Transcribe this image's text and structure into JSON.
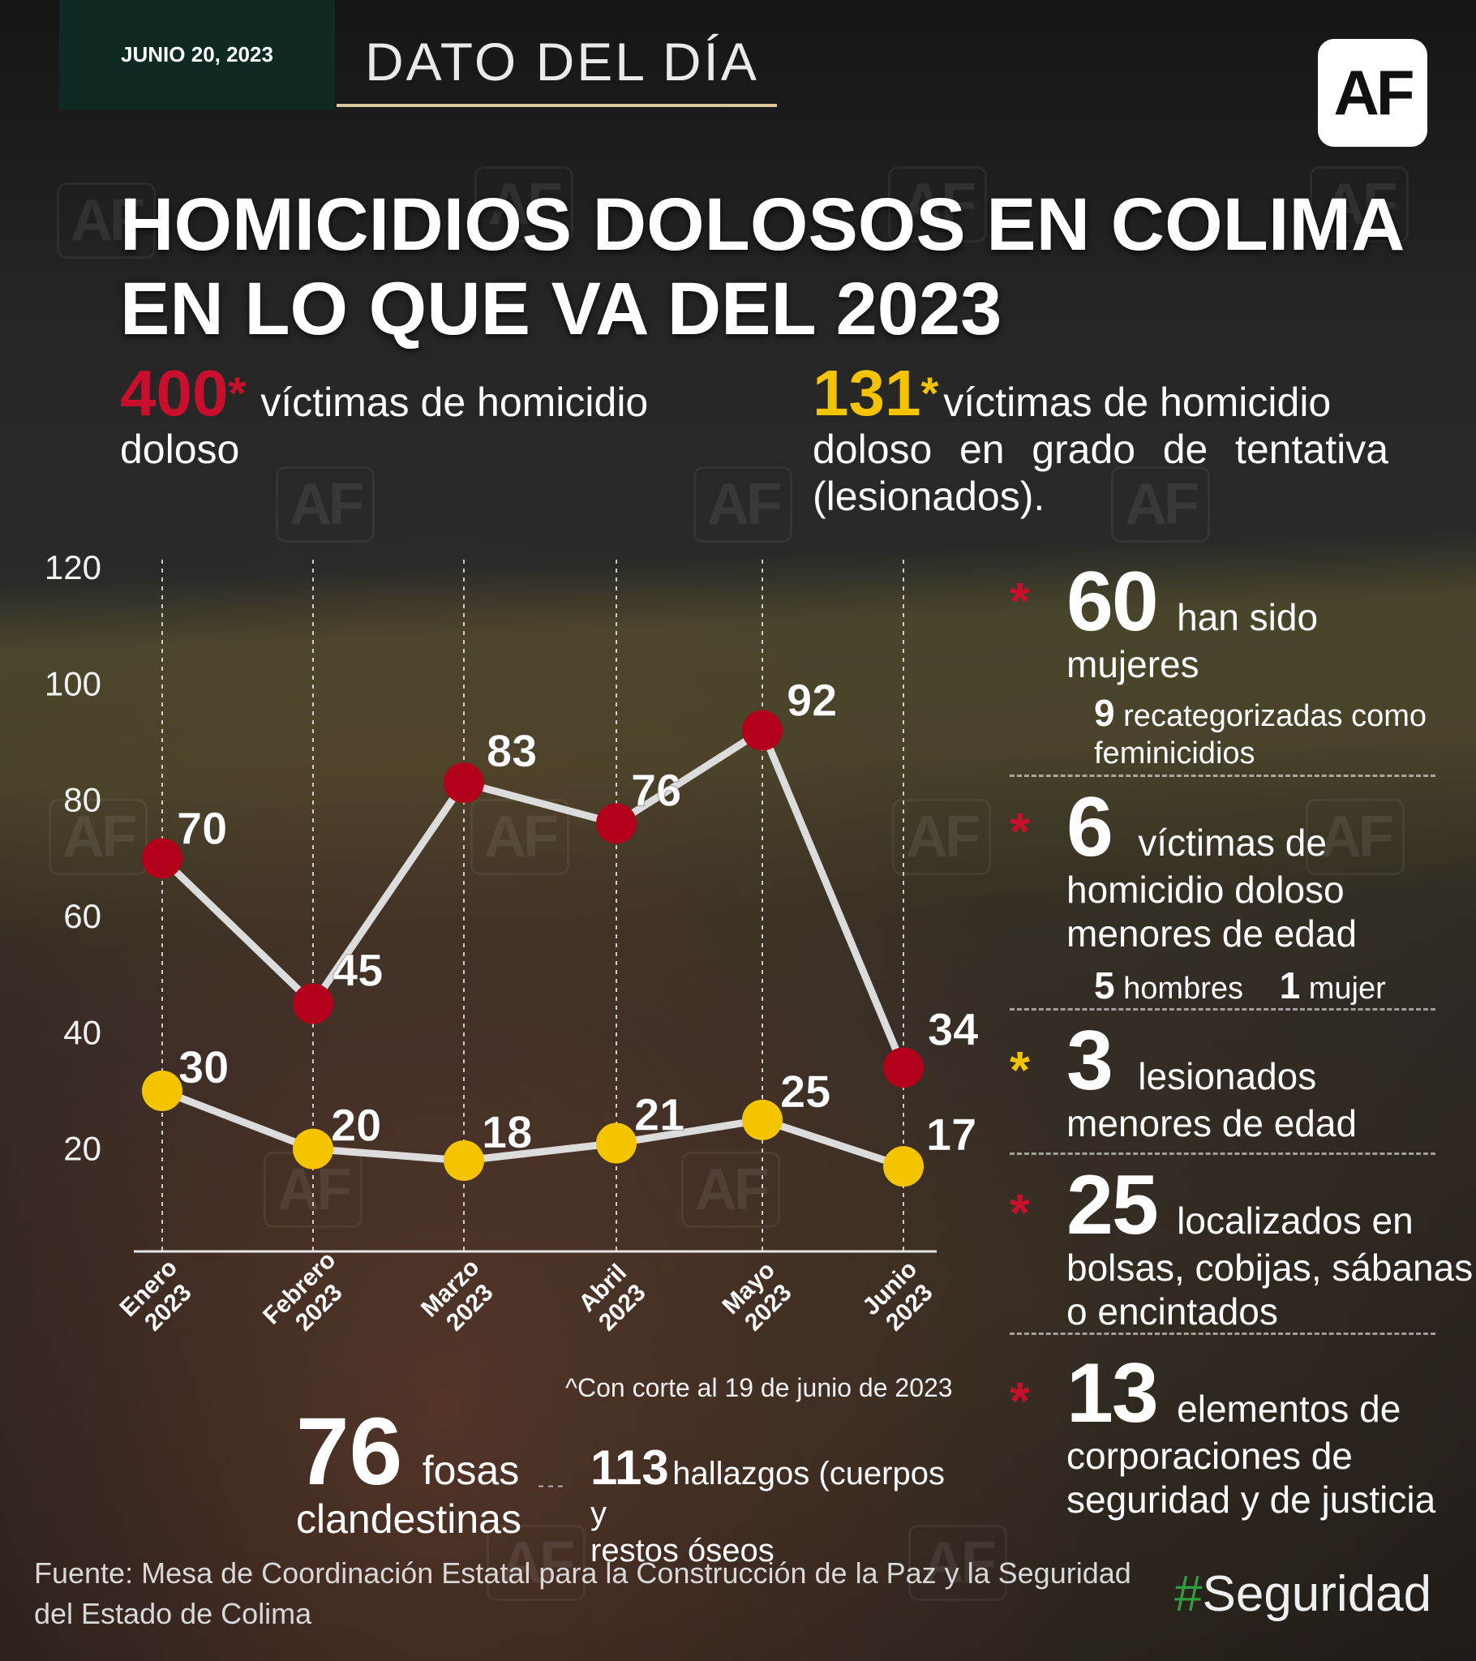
{
  "header": {
    "date": "JUNIO 20, 2023",
    "section": "DATO DEL DÍA",
    "logo": "AF",
    "watermark": "AF"
  },
  "title": {
    "line1": "HOMICIDIOS DOLOSOS EN COLIMA",
    "line2": "EN LO QUE VA DEL 2023"
  },
  "stats": {
    "total_victims": {
      "number": "400",
      "asterisk": "*",
      "text_line1": "víctimas de homicidio",
      "text_line2": "doloso"
    },
    "attempted": {
      "number": "131",
      "asterisk": "*",
      "text_line1": "víctimas de homicidio",
      "text_line2": "doloso en grado de tentativa",
      "text_line3": "(lesionados)."
    }
  },
  "chart_data": {
    "type": "line",
    "categories": [
      {
        "month": "Enero",
        "year": "2023"
      },
      {
        "month": "Febrero",
        "year": "2023"
      },
      {
        "month": "Marzo",
        "year": "2023"
      },
      {
        "month": "Abril",
        "year": "2023"
      },
      {
        "month": "Mayo",
        "year": "2023"
      },
      {
        "month": "Junio",
        "year": "2023"
      }
    ],
    "series": [
      {
        "values": [
          70,
          45,
          83,
          76,
          92,
          34
        ],
        "color": "#b3001b"
      },
      {
        "values": [
          30,
          20,
          18,
          21,
          25,
          17
        ],
        "color": "#f5c400"
      }
    ],
    "yticks": [
      20,
      40,
      60,
      80,
      100,
      120
    ],
    "ylim": [
      0,
      120
    ],
    "grid": "vertical dashed lines at each category",
    "line_color": "#dcdcdc",
    "note": "^Con corte al 19 de junio de 2023"
  },
  "right_panel": {
    "women": {
      "number": "60",
      "text_a": "han sido",
      "text_b": "mujeres",
      "sub_number": "9",
      "sub_text_a": "recategorizadas como",
      "sub_text_b": "feminicidios"
    },
    "minors_victims": {
      "number": "6",
      "text_a": "víctimas de",
      "text_b": "homicidio doloso",
      "text_c": "menores de edad",
      "men_number": "5",
      "men_label": "hombres",
      "women_number": "1",
      "women_label": "mujer"
    },
    "minors_injured": {
      "number": "3",
      "text_a": "lesionados",
      "text_b": "menores de edad"
    },
    "bags": {
      "number": "25",
      "text_a": "localizados en",
      "text_b": "bolsas, cobijas, sábanas",
      "text_c": "o encintados"
    },
    "security": {
      "number": "13",
      "text_a": "elementos de",
      "text_b": "corporaciones de",
      "text_c": "seguridad y de justicia"
    },
    "asterisk": "*"
  },
  "bottom": {
    "graves": {
      "number": "76",
      "text_a": "fosas",
      "text_b": "clandestinas"
    },
    "findings": {
      "number": "113",
      "text_a": "hallazgos (cuerpos y",
      "text_b": "restos óseos"
    },
    "separator": "---"
  },
  "footer": {
    "source": "Fuente: Mesa de Coordinación Estatal para la Construcción de la Paz y la Seguridad del Estado de Colima",
    "hashtag_symbol": "#",
    "hashtag_word": "Seguridad"
  },
  "colors": {
    "red": "#c8102e",
    "yellow": "#f5c400",
    "dark_green": "#0f2a25",
    "gold_line": "#d9c79a"
  }
}
